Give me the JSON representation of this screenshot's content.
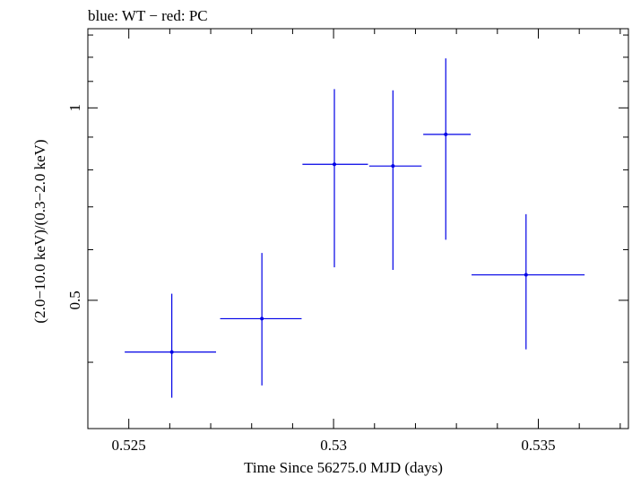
{
  "chart_data": {
    "type": "scatter",
    "title": "blue: WT − red: PC",
    "xlabel": "Time Since 56275.0 MJD (days)",
    "ylabel": "(2.0−10.0 keV)/(0.3−2.0 keV)",
    "x_scale": "linear",
    "y_scale": "log",
    "xlim": [
      0.524,
      0.5372
    ],
    "ylim": [
      0.315,
      1.33
    ],
    "x_ticks": [
      {
        "value": 0.525,
        "label": "0.525"
      },
      {
        "value": 0.53,
        "label": "0.53"
      },
      {
        "value": 0.535,
        "label": "0.535"
      }
    ],
    "y_ticks": [
      {
        "value": 0.5,
        "label": "0.5"
      },
      {
        "value": 1.0,
        "label": "1"
      }
    ],
    "series": [
      {
        "name": "WT",
        "color": "#0000e6",
        "points": [
          {
            "x": 0.52605,
            "xlo": 0.5249,
            "xhi": 0.52713,
            "y": 0.415,
            "ylo": 0.352,
            "yhi": 0.512
          },
          {
            "x": 0.52825,
            "xlo": 0.52723,
            "xhi": 0.52922,
            "y": 0.468,
            "ylo": 0.368,
            "yhi": 0.593
          },
          {
            "x": 0.53002,
            "xlo": 0.52924,
            "xhi": 0.53084,
            "y": 0.816,
            "ylo": 0.563,
            "yhi": 1.07
          },
          {
            "x": 0.53145,
            "xlo": 0.53087,
            "xhi": 0.53215,
            "y": 0.811,
            "ylo": 0.558,
            "yhi": 1.065
          },
          {
            "x": 0.53274,
            "xlo": 0.53219,
            "xhi": 0.53335,
            "y": 0.909,
            "ylo": 0.622,
            "yhi": 1.195
          },
          {
            "x": 0.5347,
            "xlo": 0.53337,
            "xhi": 0.53613,
            "y": 0.548,
            "ylo": 0.419,
            "yhi": 0.682
          }
        ]
      }
    ]
  }
}
